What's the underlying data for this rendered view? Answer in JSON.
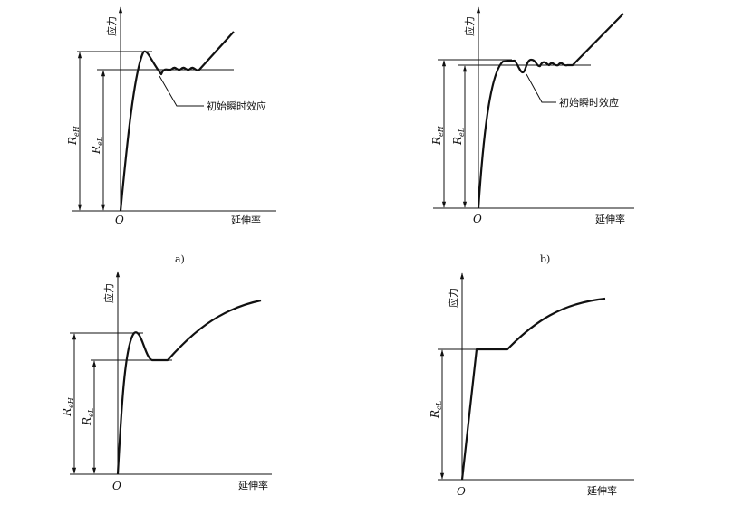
{
  "axis_labels": {
    "y": "应力",
    "x": "延伸率",
    "origin": "O"
  },
  "symbols": {
    "upper_yield": "R",
    "upper_yield_sub": "eH",
    "lower_yield": "R",
    "lower_yield_sub": "eL"
  },
  "annotation": "初始瞬时效应",
  "panels": [
    {
      "label": "a)"
    },
    {
      "label": "b)"
    },
    {
      "label": ""
    },
    {
      "label": ""
    }
  ]
}
